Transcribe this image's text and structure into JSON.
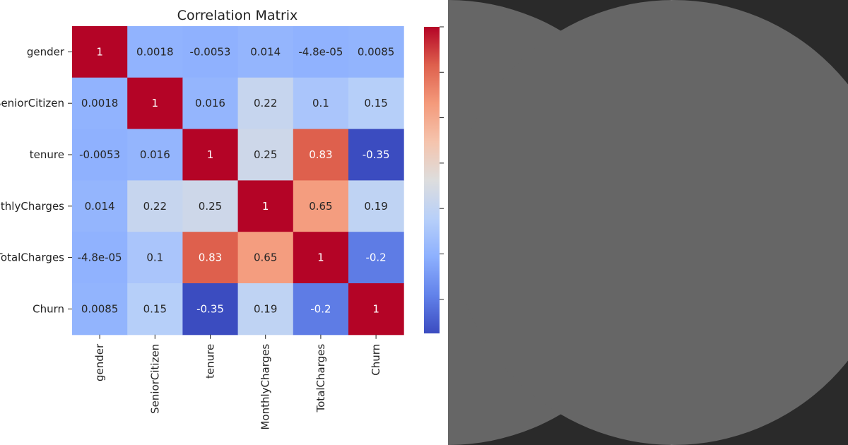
{
  "chart_data": {
    "type": "heatmap",
    "title": "Correlation Matrix",
    "xlabels": [
      "gender",
      "SeniorCitizen",
      "tenure",
      "MonthlyCharges",
      "TotalCharges",
      "Churn"
    ],
    "ylabels": [
      "gender",
      "SeniorCitizen",
      "tenure",
      "MonthlyCharges",
      "TotalCharges",
      "Churn"
    ],
    "values": [
      [
        1,
        0.0018,
        -0.0053,
        0.014,
        -4.8e-05,
        0.0085
      ],
      [
        0.0018,
        1,
        0.016,
        0.22,
        0.1,
        0.15
      ],
      [
        -0.0053,
        0.016,
        1,
        0.25,
        0.83,
        -0.35
      ],
      [
        0.014,
        0.22,
        0.25,
        1,
        0.65,
        0.19
      ],
      [
        -4.8e-05,
        0.1,
        0.83,
        0.65,
        1,
        -0.2
      ],
      [
        0.0085,
        0.15,
        -0.35,
        0.19,
        -0.2,
        1
      ]
    ],
    "annotations": [
      [
        "1",
        "0.0018",
        "-0.0053",
        "0.014",
        "-4.8e-05",
        "0.0085"
      ],
      [
        "0.0018",
        "1",
        "0.016",
        "0.22",
        "0.1",
        "0.15"
      ],
      [
        "-0.0053",
        "0.016",
        "1",
        "0.25",
        "0.83",
        "-0.35"
      ],
      [
        "0.014",
        "0.22",
        "0.25",
        "1",
        "0.65",
        "0.19"
      ],
      [
        "-4.8e-05",
        "0.1",
        "0.83",
        "0.65",
        "1",
        "-0.2"
      ],
      [
        "0.0085",
        "0.15",
        "-0.35",
        "0.19",
        "-0.2",
        "1"
      ]
    ],
    "colormap": "coolwarm",
    "vmin": -0.35,
    "vmax": 1,
    "colorbar_ticks": [
      -0.2,
      0,
      0.2,
      0.4,
      0.6,
      0.8,
      1.0
    ]
  }
}
